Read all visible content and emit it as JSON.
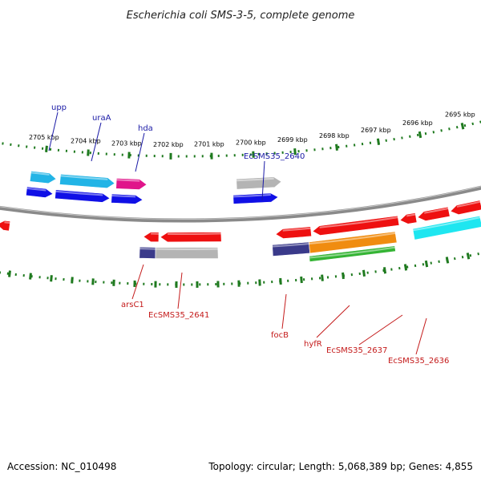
{
  "title": "Escherichia coli SMS-3-5, complete genome",
  "footer": {
    "accession": "Accession: NC_010498",
    "summary": "Topology: circular; Length: 5,068,389 bp; Genes: 4,855"
  },
  "colors": {
    "backbone": "#8a8a8a",
    "ticks": "#1f7a1f",
    "forward_label": "#1a1aa6",
    "reverse_label": "#c41a1a"
  },
  "scale_labels": [
    "2705 kbp",
    "2704 kbp",
    "2703 kbp",
    "2702 kbp",
    "2701 kbp",
    "2700 kbp",
    "2699 kbp",
    "2698 kbp",
    "2697 kbp",
    "2696 kbp",
    "2695 kbp"
  ],
  "top_labels": [
    "upp",
    "uraA",
    "hda",
    "EcSMS35_2640"
  ],
  "bottom_labels": [
    "arsC1",
    "EcSMS35_2641",
    "focB",
    "hyfR",
    "EcSMS35_2637",
    "EcSMS35_2636"
  ],
  "tracks": [
    {
      "name": "forward-track-1",
      "features": [
        {
          "color": "#22b4e6",
          "dir": "right"
        },
        {
          "color": "#22b4e6",
          "dir": "right"
        },
        {
          "color": "#e0158a",
          "dir": "right"
        },
        {
          "color": "#b4b4b4",
          "dir": "right"
        }
      ]
    },
    {
      "name": "forward-track-2",
      "features": [
        {
          "color": "#1010e6",
          "dir": "right"
        },
        {
          "color": "#1010e6",
          "dir": "right"
        },
        {
          "color": "#1010e6",
          "dir": "right"
        },
        {
          "color": "#1010e6",
          "dir": "right"
        }
      ]
    },
    {
      "name": "reverse-track-1",
      "features": [
        {
          "color": "#ee1010",
          "dir": "left"
        },
        {
          "color": "#ee1010",
          "dir": "left"
        },
        {
          "color": "#ee1010",
          "dir": "left"
        },
        {
          "color": "#ee1010",
          "dir": "left"
        },
        {
          "color": "#ee1010",
          "dir": "left"
        },
        {
          "color": "#ee1010",
          "dir": "left"
        },
        {
          "color": "#ee1010",
          "dir": "left"
        },
        {
          "color": "#ee1010",
          "dir": "left"
        }
      ]
    },
    {
      "name": "reverse-track-2",
      "features": [
        {
          "color": "#3a3a8a",
          "dir": "none"
        },
        {
          "color": "#b4b4b4",
          "dir": "none"
        },
        {
          "color": "#3a3a8a",
          "dir": "none"
        },
        {
          "color": "#f08c10",
          "dir": "none"
        },
        {
          "color": "#1ee6f0",
          "dir": "none"
        }
      ]
    },
    {
      "name": "reverse-track-3",
      "features": [
        {
          "color": "#34b434",
          "dir": "none"
        }
      ]
    }
  ]
}
